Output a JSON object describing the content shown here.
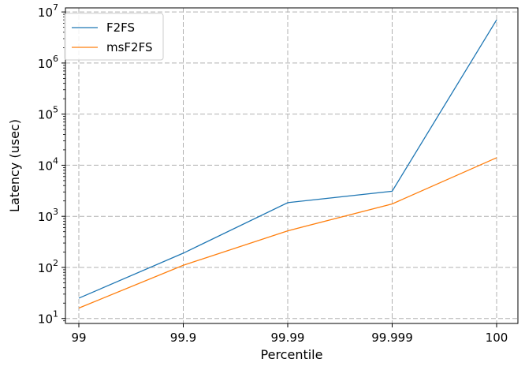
{
  "chart_data": {
    "type": "line",
    "x": [
      "99",
      "99.9",
      "99.99",
      "99.999",
      "100"
    ],
    "series": [
      {
        "name": "F2FS",
        "color": "#1f77b4",
        "values": [
          25,
          190,
          1850,
          3100,
          7000000
        ]
      },
      {
        "name": "msF2FS",
        "color": "#ff7f0e",
        "values": [
          16,
          110,
          520,
          1750,
          14000
        ]
      }
    ],
    "xlabel": "Percentile",
    "ylabel": "Latency (usec)",
    "yscale": "log",
    "ylim": [
      8,
      12000000
    ],
    "yticks": [
      {
        "value": 10,
        "base": "10",
        "exp": "1"
      },
      {
        "value": 100,
        "base": "10",
        "exp": "2"
      },
      {
        "value": 1000,
        "base": "10",
        "exp": "3"
      },
      {
        "value": 10000,
        "base": "10",
        "exp": "4"
      },
      {
        "value": 100000,
        "base": "10",
        "exp": "5"
      },
      {
        "value": 1000000,
        "base": "10",
        "exp": "6"
      },
      {
        "value": 10000000,
        "base": "10",
        "exp": "7"
      }
    ],
    "grid": true,
    "legend": "top-left"
  }
}
